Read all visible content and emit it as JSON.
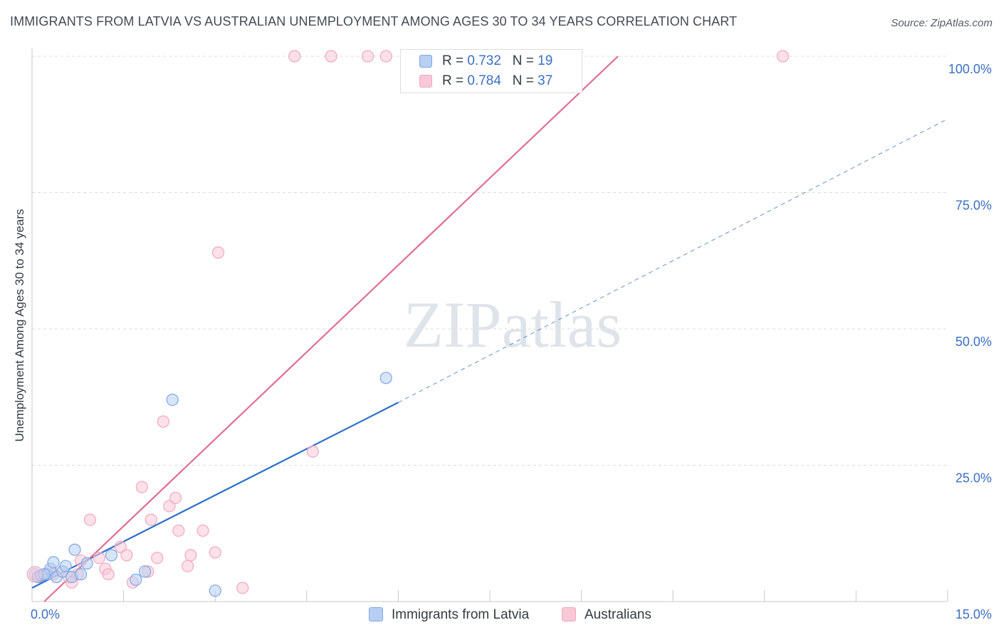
{
  "chart_data": {
    "type": "scatter",
    "title": "IMMIGRANTS FROM LATVIA VS AUSTRALIAN UNEMPLOYMENT AMONG AGES 30 TO 34 YEARS CORRELATION CHART",
    "source": "Source: ZipAtlas.com",
    "xlabel": "",
    "ylabel": "Unemployment Among Ages 30 to 34 years",
    "xlim": [
      0,
      15
    ],
    "ylim": [
      0,
      100
    ],
    "x_tick_labels": [
      "0.0%",
      "15.0%"
    ],
    "y_tick_labels": [
      "100.0%",
      "75.0%",
      "50.0%",
      "25.0%"
    ],
    "y_ticks": [
      100,
      75,
      50,
      25
    ],
    "watermark": "ZIPatlas",
    "grid": true,
    "legend": {
      "position": "top-center",
      "entries": [
        {
          "r_label": "R = ",
          "r_value": "0.732",
          "n_label": "N = ",
          "n_value": "19"
        },
        {
          "r_label": "R = ",
          "r_value": "0.784",
          "n_label": "N = ",
          "n_value": "37"
        }
      ]
    },
    "series": [
      {
        "name": "Immigrants from Latvia",
        "color": "#7ea7e6",
        "fill": "#b7cff3",
        "line_color": "#2b6fc9",
        "trend": {
          "x0": 0.0,
          "y0": 2.5,
          "x1": 6.0,
          "y1": 36.5,
          "dash_to_x": 15.0,
          "dash_to_y": 88.5
        },
        "points": [
          [
            0.1,
            4.5
          ],
          [
            0.15,
            4.8
          ],
          [
            0.25,
            5.0
          ],
          [
            0.3,
            6.0
          ],
          [
            0.35,
            7.2
          ],
          [
            0.4,
            4.5
          ],
          [
            0.5,
            5.5
          ],
          [
            0.55,
            6.5
          ],
          [
            0.65,
            4.5
          ],
          [
            0.7,
            9.5
          ],
          [
            0.8,
            5.0
          ],
          [
            0.9,
            7.0
          ],
          [
            1.3,
            8.5
          ],
          [
            1.7,
            4.0
          ],
          [
            1.85,
            5.5
          ],
          [
            2.3,
            37.0
          ],
          [
            3.0,
            2.0
          ],
          [
            5.8,
            41.0
          ],
          [
            0.2,
            5.0
          ]
        ]
      },
      {
        "name": "Australians",
        "color": "#f3a6bf",
        "fill": "#f9c8d7",
        "line_color": "#e06d96",
        "trend": {
          "x0": 0.2,
          "y0": 0.0,
          "x1": 9.6,
          "y1": 100.0
        },
        "points": [
          [
            0.05,
            5.0
          ],
          [
            0.1,
            4.5
          ],
          [
            0.2,
            5.0
          ],
          [
            0.3,
            5.5
          ],
          [
            0.35,
            5.0
          ],
          [
            0.5,
            5.5
          ],
          [
            0.6,
            4.5
          ],
          [
            0.65,
            3.5
          ],
          [
            0.8,
            7.5
          ],
          [
            0.95,
            15.0
          ],
          [
            1.1,
            8.0
          ],
          [
            1.2,
            6.0
          ],
          [
            1.25,
            5.0
          ],
          [
            1.45,
            10.0
          ],
          [
            1.55,
            8.5
          ],
          [
            1.65,
            3.5
          ],
          [
            1.8,
            21.0
          ],
          [
            1.9,
            5.5
          ],
          [
            1.95,
            15.0
          ],
          [
            2.05,
            8.0
          ],
          [
            2.15,
            33.0
          ],
          [
            2.25,
            17.5
          ],
          [
            2.35,
            19.0
          ],
          [
            2.4,
            13.0
          ],
          [
            2.55,
            6.5
          ],
          [
            2.6,
            8.5
          ],
          [
            2.8,
            13.0
          ],
          [
            3.0,
            9.0
          ],
          [
            3.05,
            64.0
          ],
          [
            3.45,
            2.5
          ],
          [
            4.3,
            100.0
          ],
          [
            4.9,
            100.0
          ],
          [
            5.5,
            100.0
          ],
          [
            5.8,
            100.0
          ],
          [
            4.6,
            27.5
          ],
          [
            12.3,
            100.0
          ],
          [
            0.75,
            5.0
          ]
        ]
      }
    ]
  }
}
